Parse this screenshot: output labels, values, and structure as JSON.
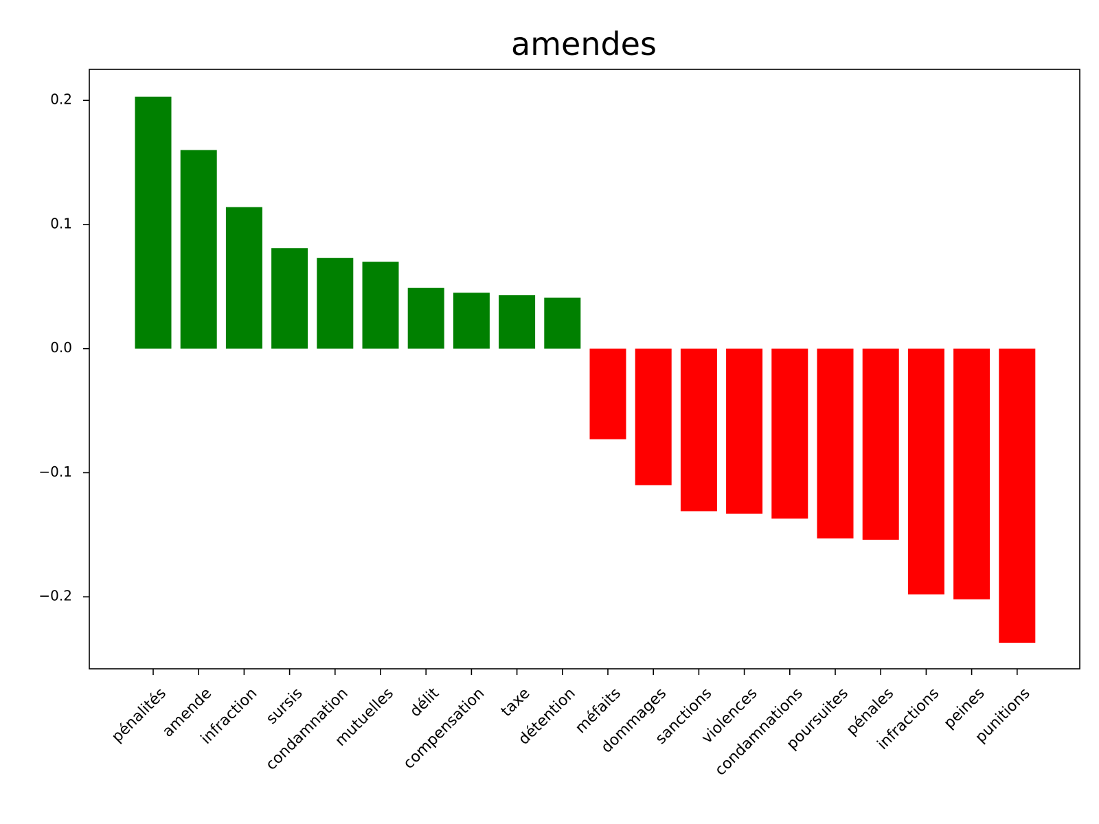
{
  "chart_data": {
    "type": "bar",
    "title": "amendes",
    "xlabel": "",
    "ylabel": "",
    "categories": [
      "pénalités",
      "amende",
      "infraction",
      "sursis",
      "condamnation",
      "mutuelles",
      "délit",
      "compensation",
      "taxe",
      "détention",
      "méfaits",
      "dommages",
      "sanctions",
      "violences",
      "condamnations",
      "poursuites",
      "pénales",
      "infractions",
      "peines",
      "punitions"
    ],
    "values": [
      0.203,
      0.16,
      0.114,
      0.081,
      0.073,
      0.07,
      0.049,
      0.045,
      0.043,
      0.041,
      -0.073,
      -0.11,
      -0.131,
      -0.133,
      -0.137,
      -0.153,
      -0.154,
      -0.198,
      -0.202,
      -0.237
    ],
    "ylim": [
      -0.258,
      0.225
    ],
    "yticks": [
      0.2,
      0.1,
      0.0,
      -0.1,
      -0.2
    ],
    "ytick_labels": [
      "0.2",
      "0.1",
      "0.0",
      "−0.1",
      "−0.2"
    ],
    "grid": false,
    "colors": {
      "positive": "#008000",
      "negative": "#ff0000",
      "axis": "#000000"
    }
  }
}
